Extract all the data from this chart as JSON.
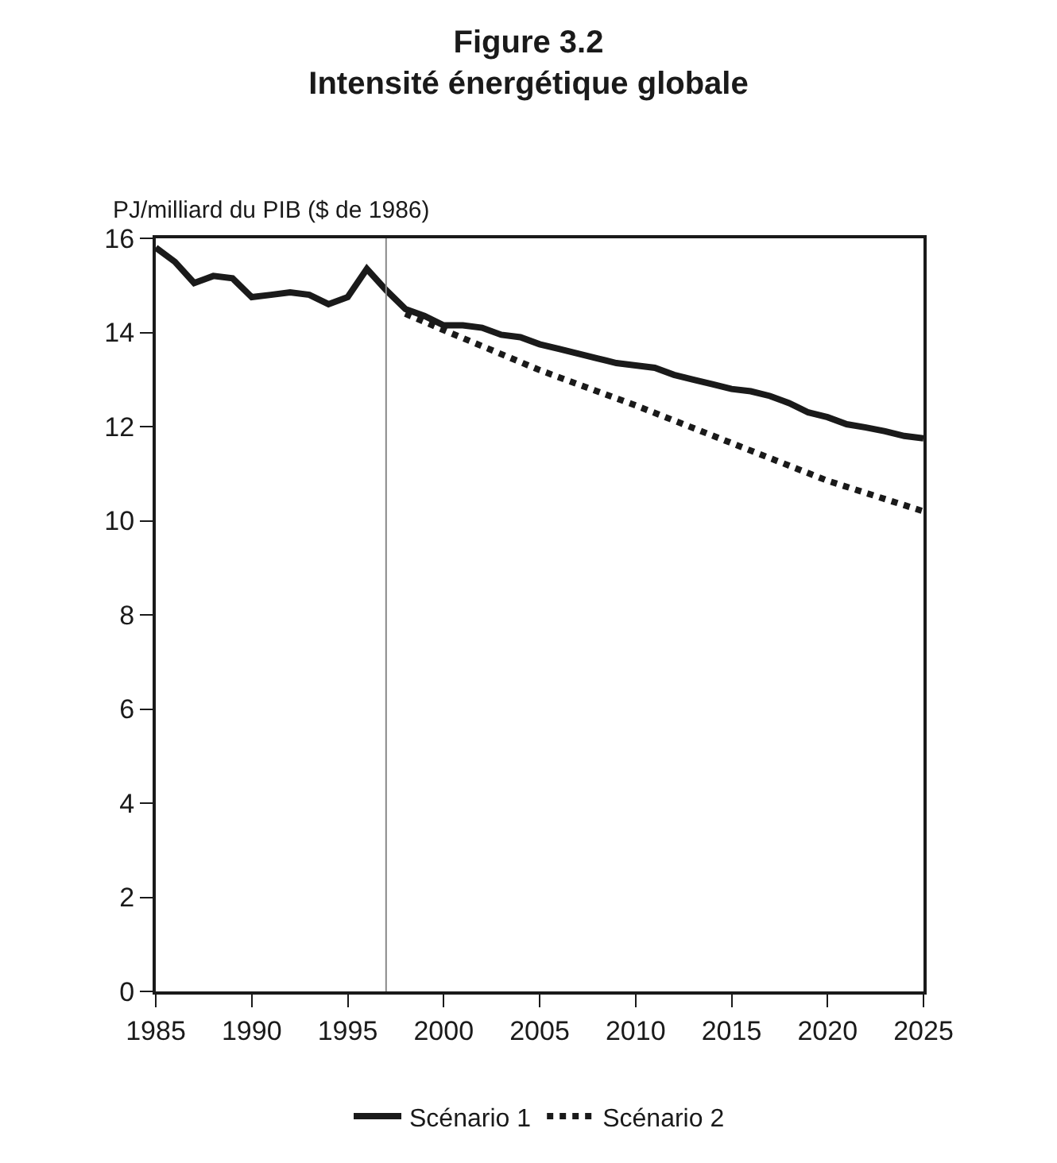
{
  "chart_data": {
    "type": "line",
    "title": "Figure 3.2\nIntensité énergétique globale",
    "ylabel": "PJ/milliard du PIB ($ de 1986)",
    "xlim": [
      1985,
      2025
    ],
    "xticks": [
      1985,
      1990,
      1995,
      2000,
      2005,
      2010,
      2015,
      2020,
      2025
    ],
    "ylim": [
      0,
      16
    ],
    "yticks": [
      0,
      2,
      4,
      6,
      8,
      10,
      12,
      14,
      16
    ],
    "legend": "bottom",
    "marker": "none",
    "ref_lines": [
      {
        "axis": "x",
        "value": 1997,
        "color": "#888888"
      }
    ],
    "series": [
      {
        "name": "Scénario 1",
        "color": "#1a1a1a",
        "line_style": "solid",
        "x": [
          1985,
          1986,
          1987,
          1988,
          1989,
          1990,
          1991,
          1992,
          1993,
          1994,
          1995,
          1996,
          1997,
          1998,
          1999,
          2000,
          2001,
          2002,
          2003,
          2004,
          2005,
          2006,
          2007,
          2008,
          2009,
          2010,
          2011,
          2012,
          2013,
          2014,
          2015,
          2016,
          2017,
          2018,
          2019,
          2020,
          2021,
          2022,
          2023,
          2024,
          2025
        ],
        "values": [
          15.8,
          15.5,
          15.05,
          15.2,
          15.15,
          14.75,
          14.8,
          14.85,
          14.8,
          14.6,
          14.75,
          15.35,
          14.9,
          14.5,
          14.35,
          14.15,
          14.15,
          14.1,
          13.95,
          13.9,
          13.75,
          13.65,
          13.55,
          13.45,
          13.35,
          13.3,
          13.25,
          13.1,
          13.0,
          12.9,
          12.8,
          12.75,
          12.65,
          12.5,
          12.3,
          12.2,
          12.05,
          11.98,
          11.9,
          11.8,
          11.75
        ]
      },
      {
        "name": "Scénario 2",
        "color": "#1a1a1a",
        "line_style": "dotted",
        "x": [
          1998,
          2000,
          2005,
          2010,
          2015,
          2020,
          2025
        ],
        "values": [
          14.4,
          14.05,
          13.2,
          12.45,
          11.65,
          10.85,
          10.2
        ]
      }
    ]
  }
}
